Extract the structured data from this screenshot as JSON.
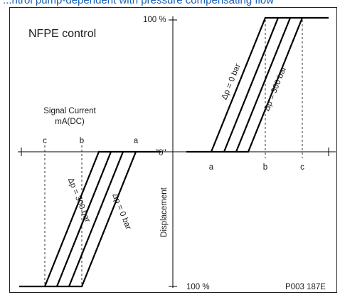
{
  "header_text": "...ntrol pump-dependent with pressure compensating flow",
  "title": "NFPE control",
  "signal_label_line1": "Signal Current",
  "signal_label_line2": "mA(DC)",
  "zero_label": "\"0\"",
  "top_100": "100 %",
  "bottom_100": "100 %",
  "displacement_label": "Displacement",
  "figure_code": "P003 187E",
  "ticks": {
    "a": "a",
    "b": "b",
    "c": "c"
  },
  "curve_labels": {
    "dp0": "Δp = 0 bar",
    "dp300": "Δp = 300 bar"
  },
  "colors": {
    "line": "#000000",
    "frame": "#222222",
    "header": "#1a5fb4"
  }
}
